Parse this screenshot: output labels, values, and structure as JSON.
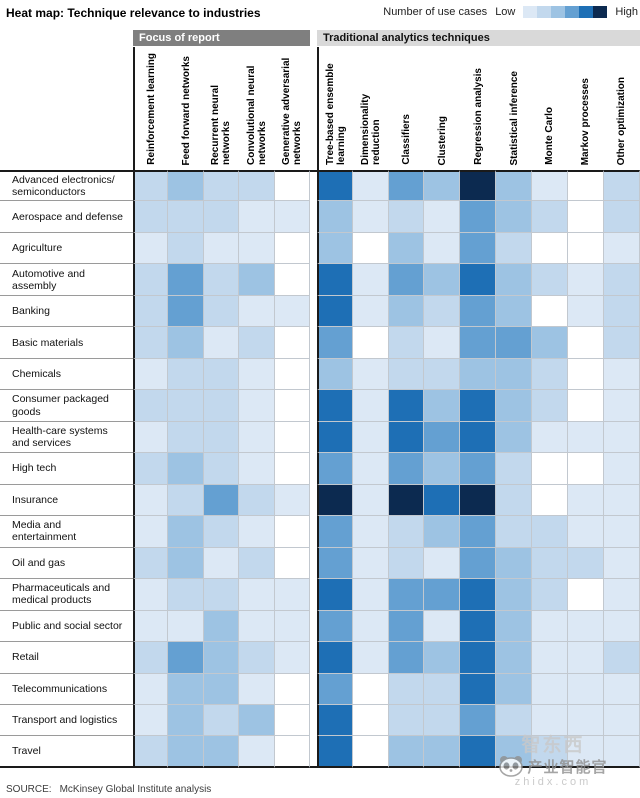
{
  "title": "Heat map: Technique relevance to industries",
  "legend": {
    "label": "Number of use cases",
    "low": "Low",
    "high": "High"
  },
  "source": {
    "prefix": "SOURCE:",
    "text": "McKinsey Global Institute analysis"
  },
  "watermark": {
    "top": "智东西",
    "name": "产业智能官",
    "site": "zhidx.com"
  },
  "chart_data": {
    "type": "heatmap",
    "title": "Heat map: Technique relevance to industries",
    "legend_label": "Number of use cases (Low → High)",
    "value_scale": "0 = lowest (white) … 6 = highest (dark navy) number of use cases",
    "palette": [
      "#ffffff",
      "#dce8f5",
      "#c2d8ed",
      "#9dc3e3",
      "#64a0d2",
      "#1e6fb5",
      "#0c2a50"
    ],
    "column_groups": [
      {
        "label": "Focus of report",
        "span": 5,
        "style": "dark"
      },
      {
        "label": "Traditional analytics techniques",
        "span": 9,
        "style": "light"
      }
    ],
    "columns": [
      "Reinforcement learning",
      "Feed forward networks",
      "Recurrent neural networks",
      "Convolutional neural networks",
      "Generative adversarial networks",
      "Tree-based ensemble learning",
      "Dimensionality reduction",
      "Classifiers",
      "Clustering",
      "Regression analysis",
      "Statistical inference",
      "Monte Carlo",
      "Markov processes",
      "Other optimization"
    ],
    "rows": [
      {
        "label": "Advanced electronics/ semiconductors",
        "values": [
          2,
          3,
          2,
          2,
          0,
          5,
          1,
          4,
          3,
          6,
          3,
          1,
          0,
          2
        ]
      },
      {
        "label": "Aerospace and defense",
        "values": [
          2,
          2,
          2,
          1,
          1,
          3,
          1,
          2,
          1,
          4,
          3,
          2,
          0,
          2
        ]
      },
      {
        "label": "Agriculture",
        "values": [
          1,
          2,
          1,
          1,
          0,
          3,
          0,
          3,
          1,
          4,
          2,
          0,
          0,
          1
        ]
      },
      {
        "label": "Automotive and assembly",
        "values": [
          2,
          4,
          2,
          3,
          0,
          5,
          1,
          4,
          3,
          5,
          3,
          2,
          1,
          2
        ]
      },
      {
        "label": "Banking",
        "values": [
          2,
          4,
          2,
          1,
          1,
          5,
          1,
          3,
          2,
          4,
          3,
          0,
          1,
          2
        ]
      },
      {
        "label": "Basic materials",
        "values": [
          2,
          3,
          1,
          2,
          0,
          4,
          0,
          2,
          1,
          4,
          4,
          3,
          0,
          2
        ]
      },
      {
        "label": "Chemicals",
        "values": [
          1,
          2,
          2,
          1,
          0,
          3,
          1,
          2,
          2,
          3,
          3,
          2,
          0,
          1
        ]
      },
      {
        "label": "Consumer packaged goods",
        "values": [
          2,
          2,
          2,
          1,
          0,
          5,
          1,
          5,
          3,
          5,
          3,
          2,
          0,
          1
        ]
      },
      {
        "label": "Health-care systems and services",
        "values": [
          1,
          2,
          2,
          1,
          0,
          5,
          1,
          5,
          4,
          5,
          3,
          1,
          1,
          1
        ]
      },
      {
        "label": "High tech",
        "values": [
          2,
          3,
          2,
          1,
          0,
          4,
          1,
          4,
          3,
          4,
          2,
          0,
          0,
          1
        ]
      },
      {
        "label": "Insurance",
        "values": [
          1,
          2,
          4,
          2,
          1,
          6,
          1,
          6,
          5,
          6,
          2,
          0,
          1,
          1
        ]
      },
      {
        "label": "Media and entertainment",
        "values": [
          1,
          3,
          2,
          1,
          0,
          4,
          1,
          2,
          3,
          4,
          2,
          2,
          1,
          1
        ]
      },
      {
        "label": "Oil and gas",
        "values": [
          2,
          3,
          1,
          2,
          0,
          4,
          1,
          2,
          1,
          4,
          3,
          2,
          2,
          1
        ]
      },
      {
        "label": "Pharmaceuticals and medical products",
        "values": [
          1,
          2,
          2,
          1,
          1,
          5,
          1,
          4,
          4,
          5,
          3,
          2,
          0,
          1
        ]
      },
      {
        "label": "Public and social sector",
        "values": [
          1,
          1,
          3,
          1,
          1,
          4,
          1,
          4,
          1,
          5,
          3,
          1,
          1,
          1
        ]
      },
      {
        "label": "Retail",
        "values": [
          2,
          4,
          3,
          2,
          1,
          5,
          1,
          4,
          3,
          5,
          3,
          1,
          1,
          2
        ]
      },
      {
        "label": "Telecommunications",
        "values": [
          1,
          3,
          3,
          1,
          0,
          4,
          0,
          2,
          2,
          5,
          3,
          1,
          1,
          1
        ]
      },
      {
        "label": "Transport and logistics",
        "values": [
          1,
          3,
          2,
          3,
          0,
          5,
          0,
          2,
          2,
          4,
          2,
          1,
          1,
          1
        ]
      },
      {
        "label": "Travel",
        "values": [
          2,
          3,
          3,
          1,
          0,
          5,
          0,
          3,
          3,
          5,
          3,
          2,
          1,
          1
        ]
      }
    ]
  }
}
